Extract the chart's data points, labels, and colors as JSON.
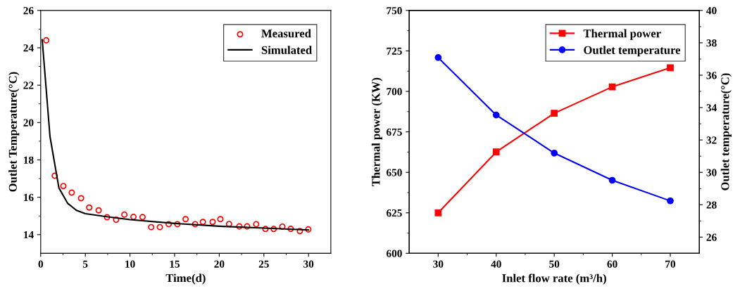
{
  "chart_data": [
    {
      "type": "scatter",
      "xlabel": "Time(d)",
      "ylabel": "Outlet Temperature(°C)",
      "xlim": [
        0,
        32.5
      ],
      "ylim": [
        13,
        26
      ],
      "xticks": [
        0,
        5,
        10,
        15,
        20,
        25,
        30
      ],
      "yticks": [
        14,
        16,
        18,
        20,
        22,
        24,
        26
      ],
      "legend": "top right",
      "grid": false,
      "series": [
        {
          "name": "Measured",
          "type": "scatter",
          "marker": "circle",
          "color": "#ff0000",
          "x": [
            0.62,
            1.57,
            2.54,
            3.48,
            4.52,
            5.44,
            6.49,
            7.43,
            8.45,
            9.37,
            10.39,
            11.41,
            12.38,
            13.35,
            14.34,
            15.31,
            16.23,
            17.3,
            18.17,
            19.26,
            20.13,
            21.1,
            22.25,
            23.12,
            24.14,
            25.18,
            26.1,
            27.07,
            28.01,
            29.03,
            29.98
          ],
          "values": [
            24.4,
            17.15,
            16.6,
            16.25,
            15.95,
            15.45,
            15.3,
            14.93,
            14.8,
            15.07,
            14.95,
            14.94,
            14.4,
            14.4,
            14.56,
            14.56,
            14.83,
            14.56,
            14.68,
            14.68,
            14.83,
            14.57,
            14.44,
            14.44,
            14.56,
            14.3,
            14.3,
            14.43,
            14.31,
            14.19,
            14.28
          ]
        },
        {
          "name": "Simulated",
          "type": "line",
          "marker": "none",
          "color": "#000000",
          "x": [
            0.17,
            1.04,
            2.04,
            3.03,
            4,
            5,
            7.5,
            10,
            15,
            20,
            25,
            30
          ],
          "values": [
            24.43,
            19.25,
            16.5,
            15.67,
            15.3,
            15.12,
            14.95,
            14.8,
            14.6,
            14.45,
            14.35,
            14.25
          ]
        }
      ]
    },
    {
      "type": "line",
      "xlabel": "Inlet flow rate (m³/h)",
      "ylabel": "Thermal power (KW)",
      "y2label": "Outlet temperature(°C)",
      "x": [
        30,
        40,
        50,
        60,
        70
      ],
      "xlim": [
        25,
        75
      ],
      "ylim": [
        600,
        750
      ],
      "y2lim": [
        25,
        40
      ],
      "xticks": [
        30,
        40,
        50,
        60,
        70
      ],
      "yticks": [
        600,
        625,
        650,
        675,
        700,
        725,
        750
      ],
      "y2ticks": [
        26,
        28,
        30,
        32,
        34,
        36,
        38,
        40
      ],
      "legend": "top right",
      "grid": false,
      "series": [
        {
          "name": "Thermal power",
          "marker": "square",
          "color": "#ff0000",
          "values": [
            625,
            662.6,
            686.5,
            702.8,
            714.6
          ]
        },
        {
          "name": "Outlet temperature",
          "marker": "circle",
          "color": "#0000ff",
          "axis": "y2",
          "values": [
            37.09,
            33.54,
            31.19,
            29.51,
            28.24
          ]
        }
      ]
    }
  ]
}
